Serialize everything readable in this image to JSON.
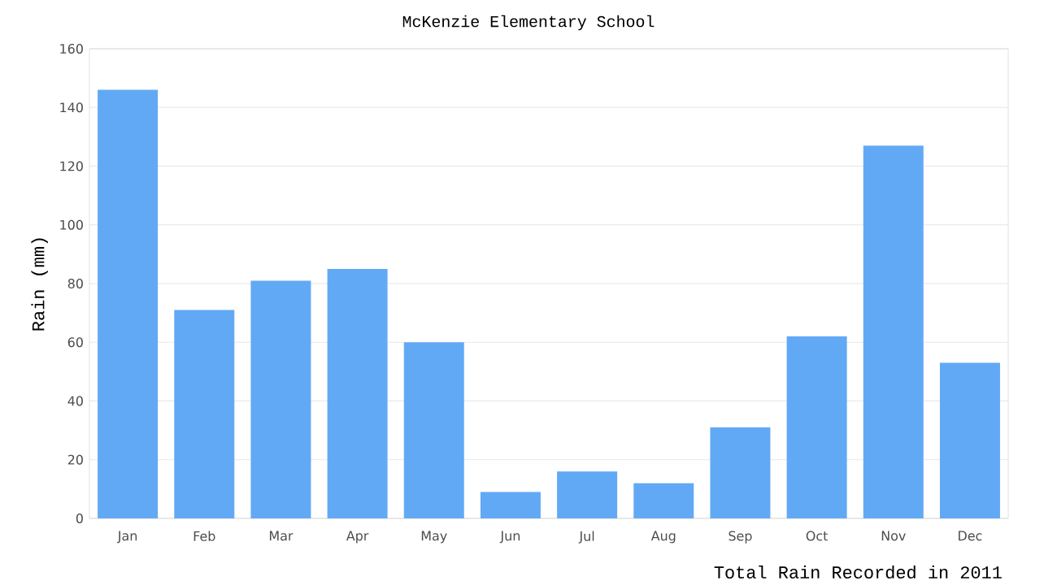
{
  "chart_data": {
    "type": "bar",
    "title": "McKenzie Elementary School",
    "ylabel": "Rain (mm)",
    "categories": [
      "Jan",
      "Feb",
      "Mar",
      "Apr",
      "May",
      "Jun",
      "Jul",
      "Aug",
      "Sep",
      "Oct",
      "Nov",
      "Dec"
    ],
    "values": [
      146,
      71,
      81,
      85,
      60,
      9,
      16,
      12,
      31,
      62,
      127,
      53
    ],
    "color": "#62a9f5",
    "ylim": [
      0,
      160
    ],
    "yticks": [
      0,
      20,
      40,
      60,
      80,
      100,
      120,
      140,
      160
    ],
    "grid": "y",
    "annotations": [
      "Total Rain Recorded in 2011"
    ]
  }
}
